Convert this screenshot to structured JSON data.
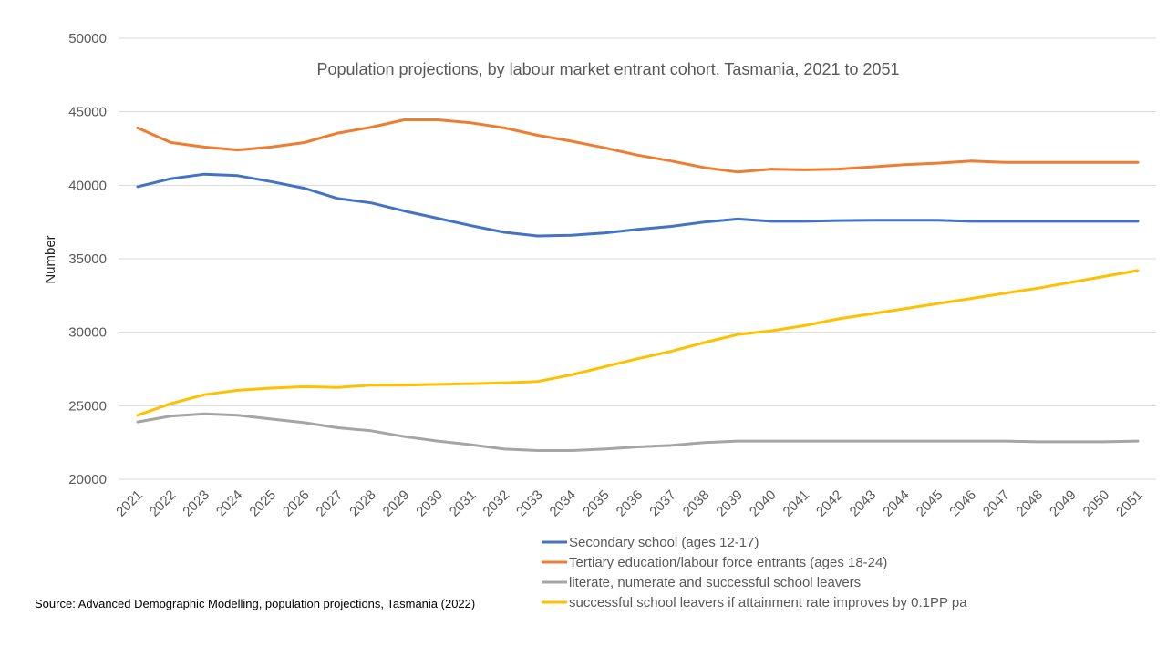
{
  "chart_data": {
    "type": "line",
    "title": "Population projections, by labour market entrant cohort, Tasmania, 2021 to 2051",
    "ylabel": "Number",
    "xlabel": "",
    "ylim": [
      20000,
      50000
    ],
    "yticks": [
      20000,
      25000,
      30000,
      35000,
      40000,
      45000,
      50000
    ],
    "grid": true,
    "legend_position": "bottom",
    "x": [
      "2021",
      "2022",
      "2023",
      "2024",
      "2025",
      "2026",
      "2027",
      "2028",
      "2029",
      "2030",
      "2031",
      "2032",
      "2033",
      "2034",
      "2035",
      "2036",
      "2037",
      "2038",
      "2039",
      "2040",
      "2041",
      "2042",
      "2043",
      "2044",
      "2045",
      "2046",
      "2047",
      "2048",
      "2049",
      "2050",
      "2051"
    ],
    "series": [
      {
        "name": "Secondary school (ages 12-17)",
        "color": "#4472C4",
        "values": [
          39900,
          40450,
          40750,
          40650,
          40250,
          39800,
          39100,
          38800,
          38250,
          37750,
          37250,
          36800,
          36550,
          36600,
          36750,
          37000,
          37200,
          37500,
          37700,
          37550,
          37550,
          37600,
          37620,
          37620,
          37620,
          37550,
          37550,
          37550,
          37550,
          37550,
          37550
        ]
      },
      {
        "name": "Tertiary education/labour force entrants (ages 18-24)",
        "color": "#ED7D31",
        "values": [
          43900,
          42900,
          42600,
          42400,
          42600,
          42900,
          43550,
          43950,
          44450,
          44450,
          44250,
          43900,
          43400,
          43000,
          42550,
          42050,
          41650,
          41200,
          40900,
          41100,
          41050,
          41100,
          41250,
          41400,
          41500,
          41650,
          41550,
          41550,
          41550,
          41550,
          41550
        ]
      },
      {
        "name": "literate, numerate and successful school leavers",
        "color": "#A5A5A5",
        "values": [
          23900,
          24300,
          24450,
          24350,
          24100,
          23850,
          23500,
          23300,
          22900,
          22600,
          22350,
          22050,
          21950,
          21950,
          22050,
          22200,
          22300,
          22500,
          22600,
          22600,
          22600,
          22600,
          22600,
          22600,
          22600,
          22600,
          22600,
          22550,
          22550,
          22550,
          22600
        ]
      },
      {
        "name": "successful school leavers if attainment rate improves by 0.1PP pa",
        "color": "#FFC000",
        "values": [
          24350,
          25150,
          25750,
          26050,
          26200,
          26300,
          26250,
          26400,
          26400,
          26450,
          26500,
          26550,
          26650,
          27100,
          27650,
          28200,
          28700,
          29300,
          29850,
          30100,
          30450,
          30900,
          31250,
          31600,
          31950,
          32300,
          32650,
          33000,
          33400,
          33800,
          34200
        ]
      }
    ]
  },
  "source_note": "Source: Advanced Demographic Modelling, population projections, Tasmania (2022)"
}
